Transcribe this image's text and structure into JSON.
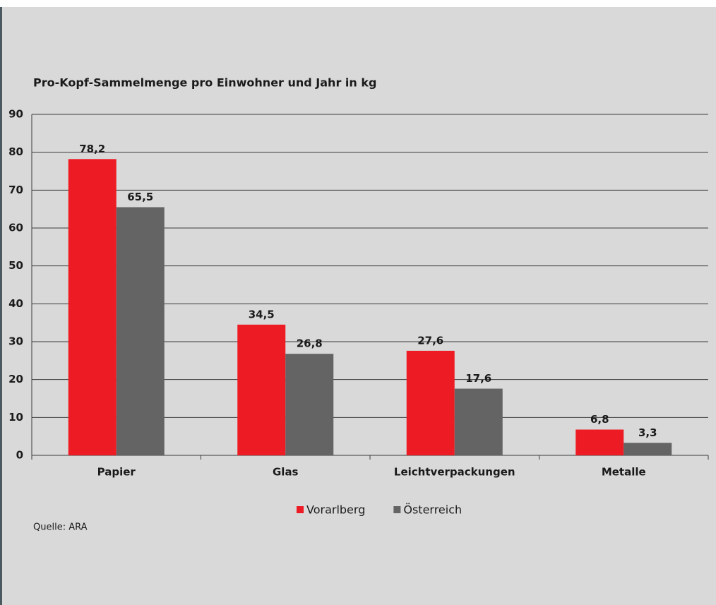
{
  "chart_data": {
    "type": "bar",
    "title": "Pro-Kopf-Sammelmenge pro Einwohner und Jahr in kg",
    "categories": [
      "Papier",
      "Glas",
      "Leichtverpackungen",
      "Metalle"
    ],
    "series": [
      {
        "name": "Vorarlberg",
        "color": "#ed1c24",
        "values": [
          78.2,
          34.5,
          27.6,
          6.8
        ],
        "value_labels": [
          "78,2",
          "34,5",
          "27,6",
          "6,8"
        ]
      },
      {
        "name": "Österreich",
        "color": "#646464",
        "values": [
          65.5,
          26.8,
          17.6,
          3.3
        ],
        "value_labels": [
          "65,5",
          "26,8",
          "17,6",
          "3,3"
        ]
      }
    ],
    "ylim": [
      0,
      90
    ],
    "yticks": [
      0,
      10,
      20,
      30,
      40,
      50,
      60,
      70,
      80,
      90
    ],
    "grid": true,
    "legend": "bottom",
    "source": "Quelle: ARA"
  }
}
